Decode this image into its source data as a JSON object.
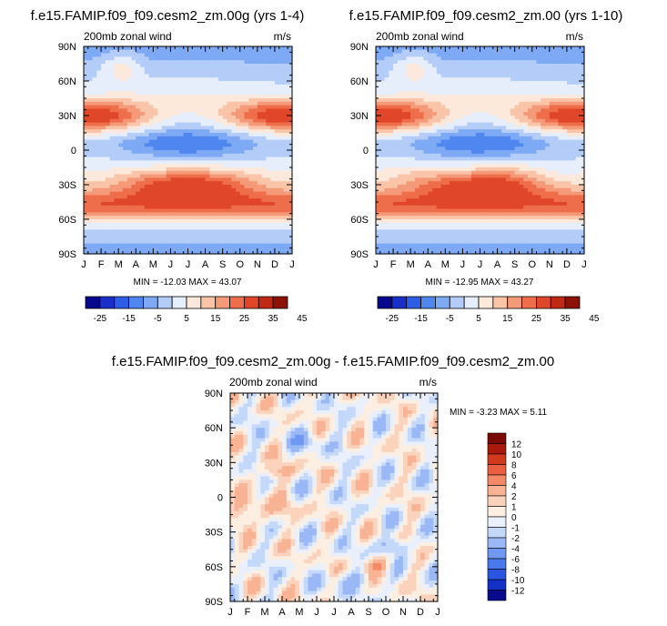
{
  "chart_data": {
    "panels": [
      {
        "type": "heatmap",
        "title": "f.e15.FAMIP.f09_f09.cesm2_zm.00g (yrs 1-4)",
        "left_label": "200mb zonal wind",
        "right_label": "m/s",
        "x_ticks": [
          "J",
          "F",
          "M",
          "A",
          "M",
          "J",
          "J",
          "A",
          "S",
          "O",
          "N",
          "D",
          "J"
        ],
        "y_ticks": [
          "90N",
          "60N",
          "30N",
          "0",
          "30S",
          "60S",
          "90S"
        ],
        "min_max_text": "MIN = -12.03 MAX =  43.07",
        "colorbar_labels": [
          "-25",
          "-15",
          "-5",
          "5",
          "15",
          "25",
          "35",
          "45"
        ],
        "features": {
          "nh_jet": [
            {
              "lat": 30,
              "month": 1.5,
              "value": 42
            },
            {
              "lat": 32,
              "month": 11.5,
              "value": 38
            }
          ],
          "equatorial_easterlies": {
            "lat": 5,
            "month": 6.5,
            "value": -12
          },
          "sh_jet": [
            {
              "lat": -30,
              "month": 7.5,
              "value": 43
            },
            {
              "lat": -48,
              "month": 1,
              "value": 30
            }
          ]
        }
      },
      {
        "type": "heatmap",
        "title": "f.e15.FAMIP.f09_f09.cesm2_zm.00 (yrs 1-10)",
        "left_label": "200mb zonal wind",
        "right_label": "m/s",
        "x_ticks": [
          "J",
          "F",
          "M",
          "A",
          "M",
          "J",
          "J",
          "A",
          "S",
          "O",
          "N",
          "D",
          "J"
        ],
        "y_ticks": [
          "90N",
          "60N",
          "30N",
          "0",
          "30S",
          "60S",
          "90S"
        ],
        "min_max_text": "MIN = -12.95 MAX =  43.27",
        "colorbar_labels": [
          "-25",
          "-15",
          "-5",
          "5",
          "15",
          "25",
          "35",
          "45"
        ]
      },
      {
        "type": "heatmap",
        "title": "f.e15.FAMIP.f09_f09.cesm2_zm.00g - f.e15.FAMIP.f09_f09.cesm2_zm.00",
        "left_label": "200mb zonal wind",
        "right_label": "m/s",
        "x_ticks": [
          "J",
          "F",
          "M",
          "A",
          "M",
          "J",
          "J",
          "A",
          "S",
          "O",
          "N",
          "D",
          "J"
        ],
        "y_ticks": [
          "90N",
          "60N",
          "30N",
          "0",
          "30S",
          "60S",
          "90S"
        ],
        "min_max_text": "MIN =  -3.23 MAX =   5.11",
        "colorbar_labels": [
          "12",
          "10",
          "8",
          "6",
          "4",
          "2",
          "1",
          "0",
          "-1",
          "-2",
          "-4",
          "-6",
          "-8",
          "-10",
          "-12"
        ]
      }
    ],
    "colors": {
      "main_scale": [
        "#08088c",
        "#1a2ec8",
        "#2f5ee6",
        "#4f87ef",
        "#7ea9f4",
        "#b4cdf8",
        "#e6eefb",
        "#fde8dc",
        "#f9c4a8",
        "#f49a78",
        "#ee6e4c",
        "#e0462a",
        "#c02a14",
        "#8c1208"
      ],
      "diff_scale": [
        "#0a0a8c",
        "#1530c4",
        "#2a55e0",
        "#4878ec",
        "#6f98f2",
        "#9ab8f6",
        "#c4d8fa",
        "#e9f0fc",
        "#fdeee2",
        "#fbd3bc",
        "#f8b294",
        "#f28a68",
        "#ea6040",
        "#d23a1e",
        "#aa1a0c",
        "#7a0a06"
      ]
    }
  }
}
